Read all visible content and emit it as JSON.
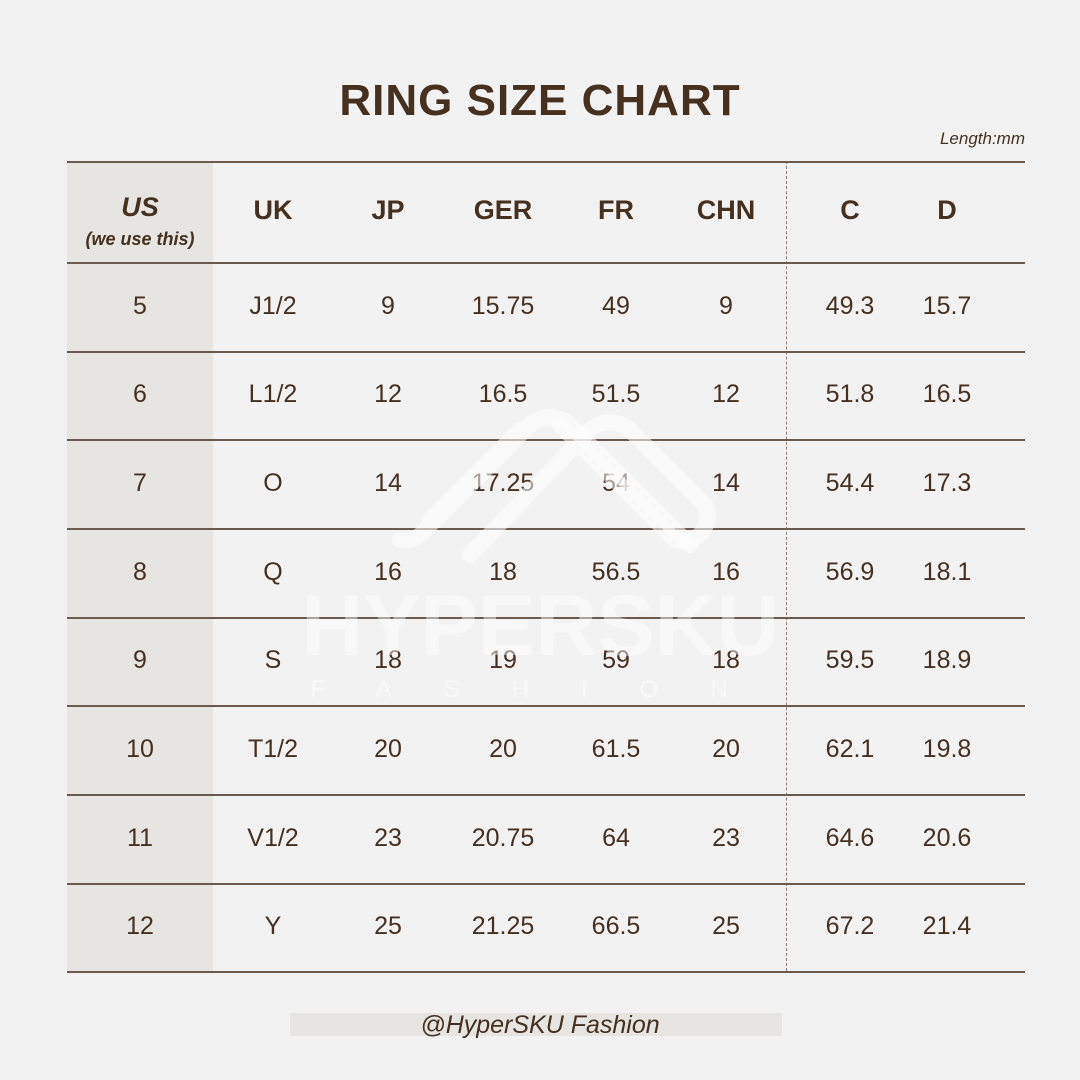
{
  "title": "RING SIZE CHART",
  "unit_note": "Length:mm",
  "table": {
    "headers": [
      "US",
      "UK",
      "JP",
      "GER",
      "FR",
      "CHN",
      "C",
      "D"
    ],
    "us_subtitle": "(we use this)",
    "rows": [
      [
        "5",
        "J1/2",
        "9",
        "15.75",
        "49",
        "9",
        "49.3",
        "15.7"
      ],
      [
        "6",
        "L1/2",
        "12",
        "16.5",
        "51.5",
        "12",
        "51.8",
        "16.5"
      ],
      [
        "7",
        "O",
        "14",
        "17.25",
        "54",
        "14",
        "54.4",
        "17.3"
      ],
      [
        "8",
        "Q",
        "16",
        "18",
        "56.5",
        "16",
        "56.9",
        "18.1"
      ],
      [
        "9",
        "S",
        "18",
        "19",
        "59",
        "18",
        "59.5",
        "18.9"
      ],
      [
        "10",
        "T1/2",
        "20",
        "20",
        "61.5",
        "20",
        "62.1",
        "19.8"
      ],
      [
        "11",
        "V1/2",
        "23",
        "20.75",
        "64",
        "23",
        "64.6",
        "20.6"
      ],
      [
        "12",
        "Y",
        "25",
        "21.25",
        "66.5",
        "25",
        "67.2",
        "21.4"
      ]
    ]
  },
  "watermark": {
    "brand": "HYPERSKU",
    "tagline": "FASHION"
  },
  "footer": "@HyperSKU Fashion",
  "colors": {
    "text": "#46301f",
    "background": "#f2f2f2",
    "us_column": "#e7e5e1"
  }
}
